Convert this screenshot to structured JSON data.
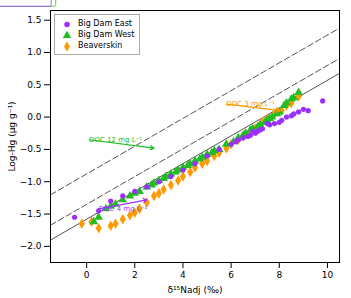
{
  "chart_data": {
    "type": "scatter",
    "xlabel": "δ¹⁵Nadj (‰)",
    "ylabel": "Log-Hg (μg g⁻¹)",
    "xlim": [
      -1.5,
      10.5
    ],
    "ylim": [
      -2.25,
      1.65
    ],
    "xticks": [
      0,
      2,
      4,
      6,
      8,
      10
    ],
    "yticks": [
      {
        "value": -2,
        "label": "−2.0"
      },
      -1.5,
      {
        "value": -1,
        "label": "−1.0"
      },
      -0.5,
      {
        "value": 0,
        "label": "0.0"
      },
      0.5,
      {
        "value": 1,
        "label": "1.0"
      },
      1.5
    ],
    "grid": false,
    "legend": "upper left",
    "series": [
      {
        "name": "Big Dam East",
        "type": "scatter",
        "color": "#9b30ff",
        "marker": "circle",
        "x": [
          9.8,
          9.2,
          9.0,
          8.8,
          8.6,
          8.5,
          8.3,
          8.1,
          8.0,
          7.8,
          7.6,
          7.5,
          7.3,
          7.2,
          7.1,
          7.0,
          6.9,
          6.8,
          6.7,
          6.5,
          6.3,
          6.2,
          6.0,
          5.5,
          5.0,
          4.5,
          4.0,
          3.5,
          3.0,
          2.5,
          2.0,
          1.5,
          1.0,
          0.5,
          -0.5
        ],
        "values": [
          0.25,
          0.1,
          0.12,
          0.08,
          0.05,
          0.02,
          0.0,
          -0.05,
          -0.08,
          -0.1,
          -0.12,
          -0.1,
          -0.18,
          -0.2,
          -0.22,
          -0.25,
          -0.22,
          -0.28,
          -0.3,
          -0.32,
          -0.35,
          -0.38,
          -0.42,
          -0.5,
          -0.6,
          -0.72,
          -0.82,
          -0.92,
          -1.0,
          -1.08,
          -1.15,
          -1.22,
          -1.3,
          -1.45,
          -1.55
        ]
      },
      {
        "name": "Big Dam West",
        "type": "scatter",
        "color": "#22bb22",
        "marker": "triangle",
        "x": [
          8.8,
          8.6,
          8.5,
          8.3,
          8.2,
          8.0,
          7.9,
          7.7,
          7.6,
          7.5,
          7.4,
          7.2,
          7.1,
          6.9,
          6.8,
          6.6,
          6.5,
          6.3,
          6.1,
          5.8,
          5.5,
          5.3,
          5.2,
          5.0,
          4.8,
          4.7,
          4.5,
          4.3,
          4.2,
          4.0,
          3.8,
          3.7,
          3.5,
          3.3,
          3.2,
          3.0,
          2.8,
          2.7,
          2.5,
          2.2,
          2.0,
          1.8,
          1.5,
          1.2,
          1.0,
          0.8,
          0.5,
          0.3
        ],
        "values": [
          0.38,
          0.3,
          0.28,
          0.22,
          0.18,
          0.08,
          0.05,
          0.0,
          -0.02,
          -0.05,
          -0.08,
          -0.12,
          -0.15,
          -0.18,
          -0.2,
          -0.25,
          -0.28,
          -0.32,
          -0.38,
          -0.42,
          -0.5,
          -0.52,
          -0.55,
          -0.58,
          -0.62,
          -0.65,
          -0.68,
          -0.72,
          -0.75,
          -0.78,
          -0.82,
          -0.85,
          -0.88,
          -0.92,
          -0.95,
          -0.98,
          -1.02,
          -1.05,
          -1.08,
          -1.15,
          -1.18,
          -1.22,
          -1.28,
          -1.35,
          -1.38,
          -1.42,
          -1.55,
          -1.62
        ]
      },
      {
        "name": "Beaverskin",
        "type": "scatter",
        "color": "#ff9900",
        "marker": "diamond",
        "x": [
          8.8,
          8.5,
          8.3,
          8.1,
          7.9,
          7.8,
          7.5,
          7.3,
          7.2,
          7.0,
          6.8,
          6.5,
          6.3,
          6.0,
          5.8,
          5.5,
          5.3,
          5.0,
          4.8,
          4.5,
          4.3,
          4.0,
          3.8,
          3.5,
          3.2,
          3.0,
          2.8,
          2.5,
          2.2,
          2.0,
          1.8,
          1.5,
          1.2,
          1.0,
          0.5,
          0.2,
          -0.2
        ],
        "values": [
          0.32,
          0.22,
          0.18,
          0.1,
          0.08,
          0.05,
          -0.02,
          -0.08,
          -0.12,
          -0.18,
          -0.22,
          -0.3,
          -0.35,
          -0.42,
          -0.48,
          -0.55,
          -0.6,
          -0.68,
          -0.72,
          -0.78,
          -0.85,
          -0.92,
          -0.98,
          -1.05,
          -1.12,
          -1.18,
          -1.22,
          -1.32,
          -1.42,
          -1.48,
          -1.52,
          -1.58,
          -1.65,
          -1.68,
          -1.72,
          -1.62,
          -1.65
        ]
      },
      {
        "type": "line",
        "color": "#555555",
        "line_style": "dashed",
        "x": [
          -1.5,
          10.5
        ],
        "values": [
          -1.2025,
          1.3775
        ]
      },
      {
        "type": "line",
        "color": "#555555",
        "line_style": "dashed",
        "x": [
          -1.5,
          10.5
        ],
        "values": [
          -1.6725,
          0.9075
        ]
      },
      {
        "type": "line",
        "color": "#555555",
        "line_style": "solid",
        "x": [
          -1.5,
          10.5
        ],
        "values": [
          -1.9025,
          0.6775
        ]
      }
    ],
    "annotations": [
      {
        "text": "DOC 3 mg L⁻¹",
        "color": "#ff9900",
        "x": 8.05,
        "y": 0.1,
        "text_x": 5.8,
        "text_y": 0.2
      },
      {
        "text": "DOC 12 mg L⁻¹",
        "color": "#22bb22",
        "x": 2.8,
        "y": -0.48,
        "text_x": 0.1,
        "text_y": -0.35
      },
      {
        "text": "DOC 4 mg L⁻¹",
        "color": "#9b30ff",
        "x": 2.5,
        "y": -1.28,
        "text_x": 0.5,
        "text_y": -1.42
      }
    ]
  }
}
